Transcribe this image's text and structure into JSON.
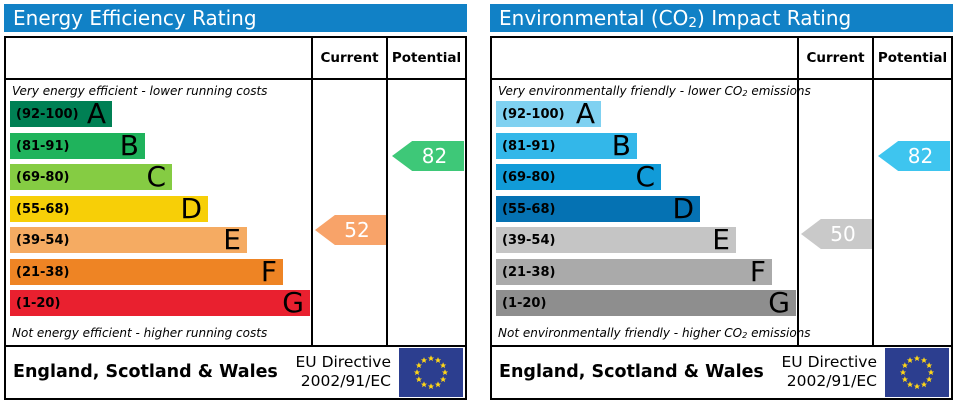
{
  "chart_data": [
    {
      "type": "bar",
      "id": "energy-efficiency",
      "header_bg": "#1181c6",
      "title": {
        "pre": "Energy Efficiency Rating",
        "sub": "",
        "post": ""
      },
      "columns": {
        "current": "Current",
        "potential": "Potential"
      },
      "captions": {
        "top": {
          "pre": "Very energy efficient - lower running costs",
          "sub": "",
          "post": ""
        },
        "bottom": {
          "pre": "Not energy efficient - higher running costs",
          "sub": "",
          "post": ""
        }
      },
      "bands": [
        {
          "letter": "A",
          "label": "(92-100)",
          "range": [
            92,
            100
          ],
          "color": "#008054",
          "width_pct": 34
        },
        {
          "letter": "B",
          "label": "(81-91)",
          "range": [
            81,
            91
          ],
          "color": "#1fb35c",
          "width_pct": 45
        },
        {
          "letter": "C",
          "label": "(69-80)",
          "range": [
            69,
            80
          ],
          "color": "#85cc43",
          "width_pct": 54
        },
        {
          "letter": "D",
          "label": "(55-68)",
          "range": [
            55,
            68
          ],
          "color": "#f7cf07",
          "width_pct": 66
        },
        {
          "letter": "E",
          "label": "(39-54)",
          "range": [
            39,
            54
          ],
          "color": "#f5ab62",
          "width_pct": 79
        },
        {
          "letter": "F",
          "label": "(21-38)",
          "range": [
            21,
            38
          ],
          "color": "#ee8424",
          "width_pct": 91
        },
        {
          "letter": "G",
          "label": "(1-20)",
          "range": [
            1,
            20
          ],
          "color": "#e9202f",
          "width_pct": 100
        }
      ],
      "current": {
        "value": 52,
        "color": "#f8a369"
      },
      "potential": {
        "value": 82,
        "color": "#3ec878"
      },
      "footer": {
        "region": "England, Scotland & Wales",
        "directive": [
          "EU Directive",
          "2002/91/EC"
        ]
      }
    },
    {
      "type": "bar",
      "id": "environmental-co2-impact",
      "header_bg": "#1181c6",
      "title": {
        "pre": "Environmental (CO",
        "sub": "2",
        "post": ") Impact Rating"
      },
      "columns": {
        "current": "Current",
        "potential": "Potential"
      },
      "captions": {
        "top": {
          "pre": "Very environmentally friendly - lower CO",
          "sub": "2",
          "post": " emissions"
        },
        "bottom": {
          "pre": "Not environmentally friendly - higher CO",
          "sub": "2",
          "post": " emissions"
        }
      },
      "bands": [
        {
          "letter": "A",
          "label": "(92-100)",
          "range": [
            92,
            100
          ],
          "color": "#7fd1f1",
          "width_pct": 35
        },
        {
          "letter": "B",
          "label": "(81-91)",
          "range": [
            81,
            91
          ],
          "color": "#33b7e9",
          "width_pct": 47
        },
        {
          "letter": "C",
          "label": "(69-80)",
          "range": [
            69,
            80
          ],
          "color": "#119bd8",
          "width_pct": 55
        },
        {
          "letter": "D",
          "label": "(55-68)",
          "range": [
            55,
            68
          ],
          "color": "#0572b3",
          "width_pct": 68
        },
        {
          "letter": "E",
          "label": "(39-54)",
          "range": [
            39,
            54
          ],
          "color": "#c5c5c5",
          "width_pct": 80
        },
        {
          "letter": "F",
          "label": "(21-38)",
          "range": [
            21,
            38
          ],
          "color": "#aaaaaa",
          "width_pct": 92
        },
        {
          "letter": "G",
          "label": "(1-20)",
          "range": [
            1,
            20
          ],
          "color": "#8e8e8e",
          "width_pct": 100
        }
      ],
      "current": {
        "value": 50,
        "color": "#c9c9c9"
      },
      "potential": {
        "value": 82,
        "color": "#3ec5ef"
      },
      "footer": {
        "region": "England, Scotland & Wales",
        "directive": [
          "EU Directive",
          "2002/91/EC"
        ]
      }
    }
  ]
}
